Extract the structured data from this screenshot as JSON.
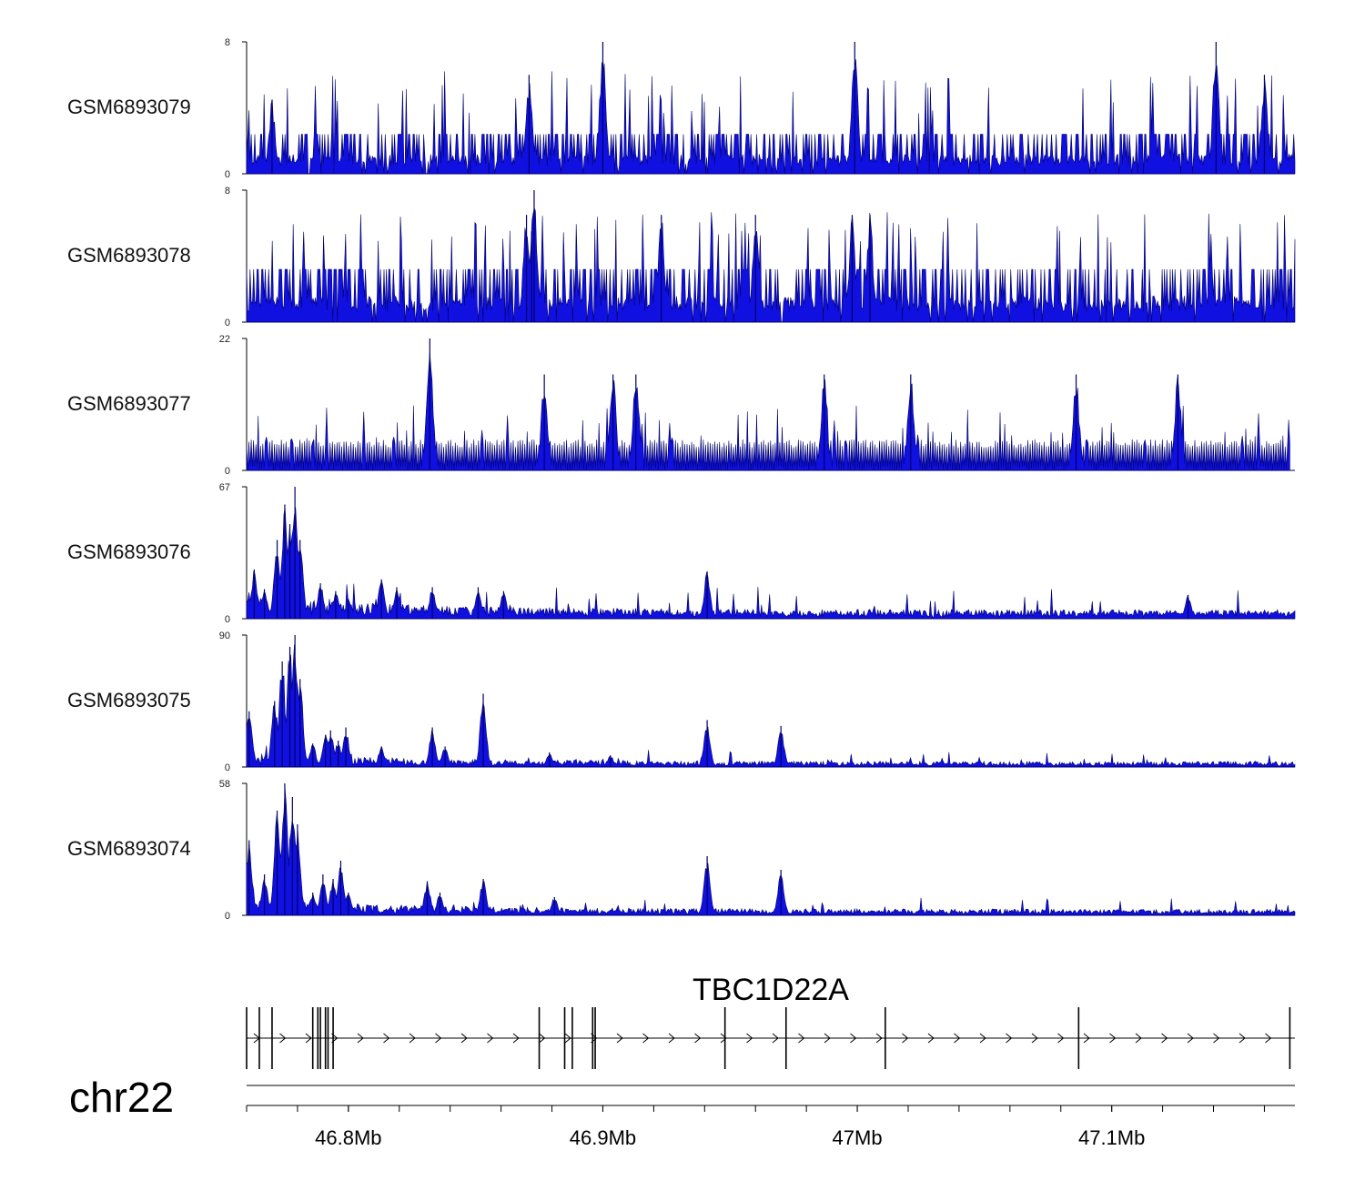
{
  "chart_data": {
    "type": "area",
    "title": "",
    "chromosome": "chr22",
    "xlim": [
      46.76,
      47.172
    ],
    "x_unit": "Mb",
    "x_ticks": [
      46.8,
      46.9,
      47.0,
      47.1
    ],
    "x_tick_labels": [
      "46.8Mb",
      "46.9Mb",
      "47Mb",
      "47.1Mb"
    ],
    "minor_tick_step": 0.02,
    "color": "#1010e0",
    "outline_color": "#00006a",
    "tracks": [
      {
        "name": "GSM6893079",
        "ymin_label": "0",
        "ymax_label": "8",
        "ylim": [
          0,
          8
        ],
        "profile": "noise",
        "base": 1.2,
        "spike_max": 8,
        "peaks": [
          [
            46.77,
            4.5
          ],
          [
            46.871,
            6.0
          ],
          [
            46.9,
            8.0
          ],
          [
            46.999,
            8.0
          ],
          [
            47.141,
            8.0
          ],
          [
            47.16,
            6.0
          ]
        ]
      },
      {
        "name": "GSM6893078",
        "ymin_label": "0",
        "ymax_label": "8",
        "ylim": [
          0,
          8
        ],
        "profile": "noise",
        "base": 1.6,
        "spike_max": 8,
        "peaks": [
          [
            46.87,
            6.5
          ],
          [
            46.872,
            5.5
          ],
          [
            46.873,
            8.0
          ],
          [
            46.923,
            6.5
          ],
          [
            46.96,
            6.5
          ],
          [
            46.998,
            6.5
          ],
          [
            47.005,
            6.5
          ]
        ]
      },
      {
        "name": "GSM6893077",
        "ymin_label": "0",
        "ymax_label": "22",
        "ylim": [
          0,
          22
        ],
        "profile": "sparse",
        "base": 4.5,
        "spike_max": 16,
        "x_end": 47.17,
        "peaks": [
          [
            46.832,
            22.0
          ],
          [
            46.877,
            16.0
          ],
          [
            46.904,
            16.0
          ],
          [
            46.913,
            16.0
          ],
          [
            46.987,
            16.0
          ],
          [
            47.021,
            16.0
          ],
          [
            47.086,
            16.0
          ],
          [
            47.126,
            16.0
          ]
        ]
      },
      {
        "name": "GSM6893076",
        "ymin_label": "0",
        "ymax_label": "67",
        "ylim": [
          0,
          67
        ],
        "profile": "decay",
        "base": 3.0,
        "spike_max": 12,
        "peaks": [
          [
            46.763,
            25
          ],
          [
            46.767,
            15
          ],
          [
            46.772,
            40
          ],
          [
            46.775,
            58
          ],
          [
            46.777,
            48
          ],
          [
            46.779,
            67
          ],
          [
            46.781,
            40
          ],
          [
            46.789,
            18
          ],
          [
            46.795,
            14
          ],
          [
            46.8,
            10
          ],
          [
            46.813,
            20
          ],
          [
            46.819,
            16
          ],
          [
            46.833,
            16
          ],
          [
            46.851,
            16
          ],
          [
            46.861,
            14
          ],
          [
            46.941,
            24
          ],
          [
            47.13,
            12
          ]
        ]
      },
      {
        "name": "GSM6893075",
        "ymin_label": "0",
        "ymax_label": "90",
        "ylim": [
          0,
          90
        ],
        "profile": "decay",
        "base": 2.5,
        "spike_max": 8,
        "peaks": [
          [
            46.761,
            38
          ],
          [
            46.771,
            45
          ],
          [
            46.774,
            72
          ],
          [
            46.777,
            82
          ],
          [
            46.779,
            90
          ],
          [
            46.781,
            60
          ],
          [
            46.786,
            16
          ],
          [
            46.791,
            22
          ],
          [
            46.793,
            25
          ],
          [
            46.796,
            18
          ],
          [
            46.799,
            27
          ],
          [
            46.813,
            14
          ],
          [
            46.833,
            27
          ],
          [
            46.838,
            14
          ],
          [
            46.853,
            50
          ],
          [
            46.879,
            10
          ],
          [
            46.903,
            8
          ],
          [
            46.941,
            32
          ],
          [
            46.97,
            28
          ]
        ]
      },
      {
        "name": "GSM6893074",
        "ymin_label": "0",
        "ymax_label": "58",
        "ylim": [
          0,
          58
        ],
        "profile": "decay",
        "base": 1.8,
        "spike_max": 6,
        "peaks": [
          [
            46.761,
            33
          ],
          [
            46.767,
            18
          ],
          [
            46.772,
            46
          ],
          [
            46.775,
            58
          ],
          [
            46.778,
            52
          ],
          [
            46.78,
            40
          ],
          [
            46.786,
            10
          ],
          [
            46.79,
            18
          ],
          [
            46.794,
            16
          ],
          [
            46.797,
            24
          ],
          [
            46.8,
            10
          ],
          [
            46.831,
            15
          ],
          [
            46.836,
            10
          ],
          [
            46.853,
            16
          ],
          [
            46.881,
            8
          ],
          [
            46.941,
            26
          ],
          [
            46.97,
            20
          ]
        ]
      }
    ],
    "gene": {
      "name": "TBC1D22A",
      "start": 46.76,
      "end": 47.172,
      "strand": "+",
      "exons": [
        46.76,
        46.765,
        46.77,
        46.786,
        46.788,
        46.789,
        46.791,
        46.792,
        46.794,
        46.875,
        46.885,
        46.888,
        46.896,
        46.897,
        46.948,
        46.972,
        47.011,
        47.087,
        47.17
      ]
    }
  }
}
